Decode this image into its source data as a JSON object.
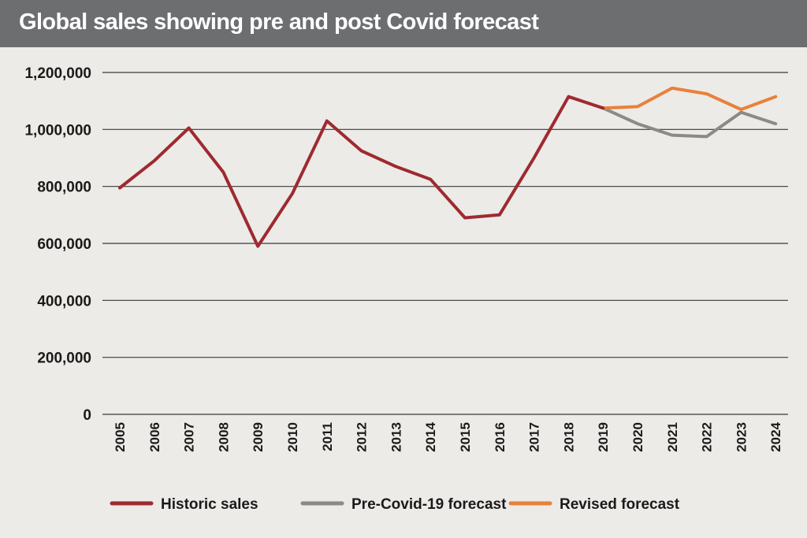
{
  "chart_data": {
    "type": "line",
    "title": "Global sales showing pre and post Covid forecast",
    "xlabel": "",
    "ylabel": "",
    "ylim": [
      0,
      1200000
    ],
    "y_ticks": [
      0,
      200000,
      400000,
      600000,
      800000,
      1000000,
      1200000
    ],
    "y_tick_labels": [
      "0",
      "200,000",
      "400,000",
      "600,000",
      "800,000",
      "1,000,000",
      "1,200,000"
    ],
    "categories": [
      "2005",
      "2006",
      "2007",
      "2008",
      "2009",
      "2010",
      "2011",
      "2012",
      "2013",
      "2014",
      "2015",
      "2016",
      "2017",
      "2018",
      "2019",
      "2020",
      "2021",
      "2022",
      "2023",
      "2024"
    ],
    "grid": true,
    "legend_position": "bottom",
    "series": [
      {
        "name": "Historic sales",
        "color": "#9e2a2f",
        "values": [
          795000,
          890000,
          1005000,
          850000,
          590000,
          775000,
          1030000,
          925000,
          870000,
          825000,
          690000,
          700000,
          900000,
          1115000,
          1075000,
          null,
          null,
          null,
          null,
          null
        ]
      },
      {
        "name": "Pre-Covid-19 forecast",
        "color": "#8a8a8a",
        "values": [
          null,
          null,
          null,
          null,
          null,
          null,
          null,
          null,
          null,
          null,
          null,
          null,
          null,
          null,
          1075000,
          1020000,
          980000,
          975000,
          1060000,
          1020000
        ]
      },
      {
        "name": "Revised forecast",
        "color": "#e8813a",
        "values": [
          null,
          null,
          null,
          null,
          null,
          null,
          null,
          null,
          null,
          null,
          null,
          null,
          null,
          null,
          1075000,
          1080000,
          1145000,
          1125000,
          1070000,
          1115000
        ]
      }
    ]
  }
}
